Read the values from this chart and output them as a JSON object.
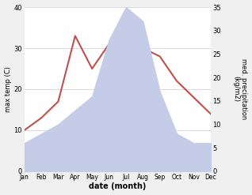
{
  "months": [
    "Jan",
    "Feb",
    "Mar",
    "Apr",
    "May",
    "Jun",
    "Jul",
    "Aug",
    "Sep",
    "Oct",
    "Nov",
    "Dec"
  ],
  "temperature": [
    10,
    13,
    17,
    33,
    25,
    31,
    30,
    30,
    28,
    22,
    18,
    14
  ],
  "precipitation": [
    6,
    8,
    10,
    13,
    16,
    28,
    35,
    32,
    17,
    8,
    6,
    6
  ],
  "temp_color": "#c0504d",
  "precip_fill_color": "#c5cce8",
  "ylabel_left": "max temp (C)",
  "ylabel_right": "med. precipitation\n(kg/m2)",
  "xlabel": "date (month)",
  "ylim_left": [
    0,
    40
  ],
  "ylim_right": [
    0,
    35
  ],
  "yticks_left": [
    0,
    10,
    20,
    30,
    40
  ],
  "yticks_right": [
    0,
    5,
    10,
    15,
    20,
    25,
    30,
    35
  ],
  "bg_color": "#f0f0f0",
  "plot_bg_color": "#ffffff"
}
